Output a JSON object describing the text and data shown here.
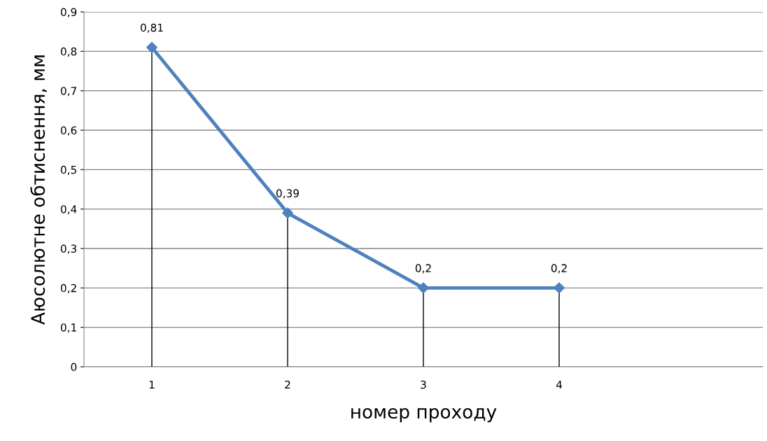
{
  "chart_data": {
    "type": "line",
    "xlabel": "номер проходу",
    "ylabel": "Аюсолютне обтиснення, мм",
    "categories": [
      "1",
      "2",
      "3",
      "4",
      null
    ],
    "series": [
      {
        "color": "#4f81bd",
        "values": [
          0.81,
          0.39,
          0.2,
          0.2,
          null
        ],
        "value_labels": [
          "0,81",
          "0,39",
          "0,2",
          "0,2",
          null
        ]
      },
      {
        "type": "lollipop",
        "color": "#4f81bd",
        "marker": "diamond",
        "values": [
          0.81,
          0.39,
          0.2,
          0.2,
          null
        ]
      }
    ],
    "ylim": [
      0,
      0.9
    ],
    "yticks": [
      0,
      {
        "value": 0.1,
        "label": "0,1"
      },
      {
        "value": 0.2,
        "label": "0,2"
      },
      {
        "value": 0.3,
        "label": "0,3"
      },
      {
        "value": 0.4,
        "label": "0,4"
      },
      {
        "value": 0.5,
        "label": "0,5"
      },
      {
        "value": 0.6,
        "label": "0,6"
      },
      {
        "value": 0.7,
        "label": "0,7"
      },
      {
        "value": 0.8,
        "label": "0,8"
      },
      {
        "value": 0.9,
        "label": "0,9"
      }
    ],
    "grid": "y",
    "legend": false
  }
}
